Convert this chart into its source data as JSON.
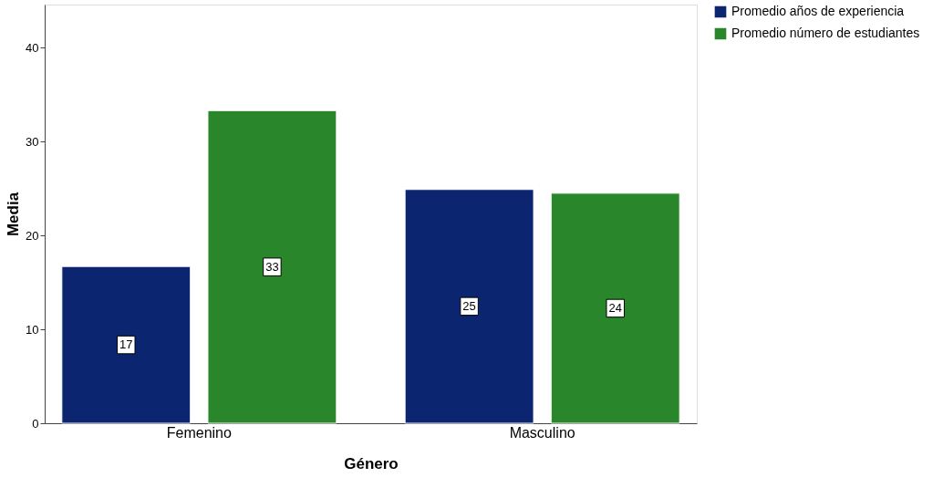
{
  "chart_data": {
    "type": "bar",
    "xlabel": "Género",
    "ylabel": "Media",
    "categories": [
      "Femenino",
      "Masculino"
    ],
    "series": [
      {
        "name": "Promedio años de experiencia",
        "color": "#0b2570",
        "values": [
          16.7,
          24.9
        ],
        "value_labels": [
          "17",
          "25"
        ]
      },
      {
        "name": " Promedio número de estudiantes",
        "color": "#2a862a",
        "values": [
          33.3,
          24.5
        ],
        "value_labels": [
          "33",
          "24"
        ]
      }
    ],
    "ylim": [
      0,
      44.6
    ],
    "yticks": [
      0,
      10,
      20,
      30,
      40
    ],
    "grid": false,
    "legend": "top right"
  }
}
